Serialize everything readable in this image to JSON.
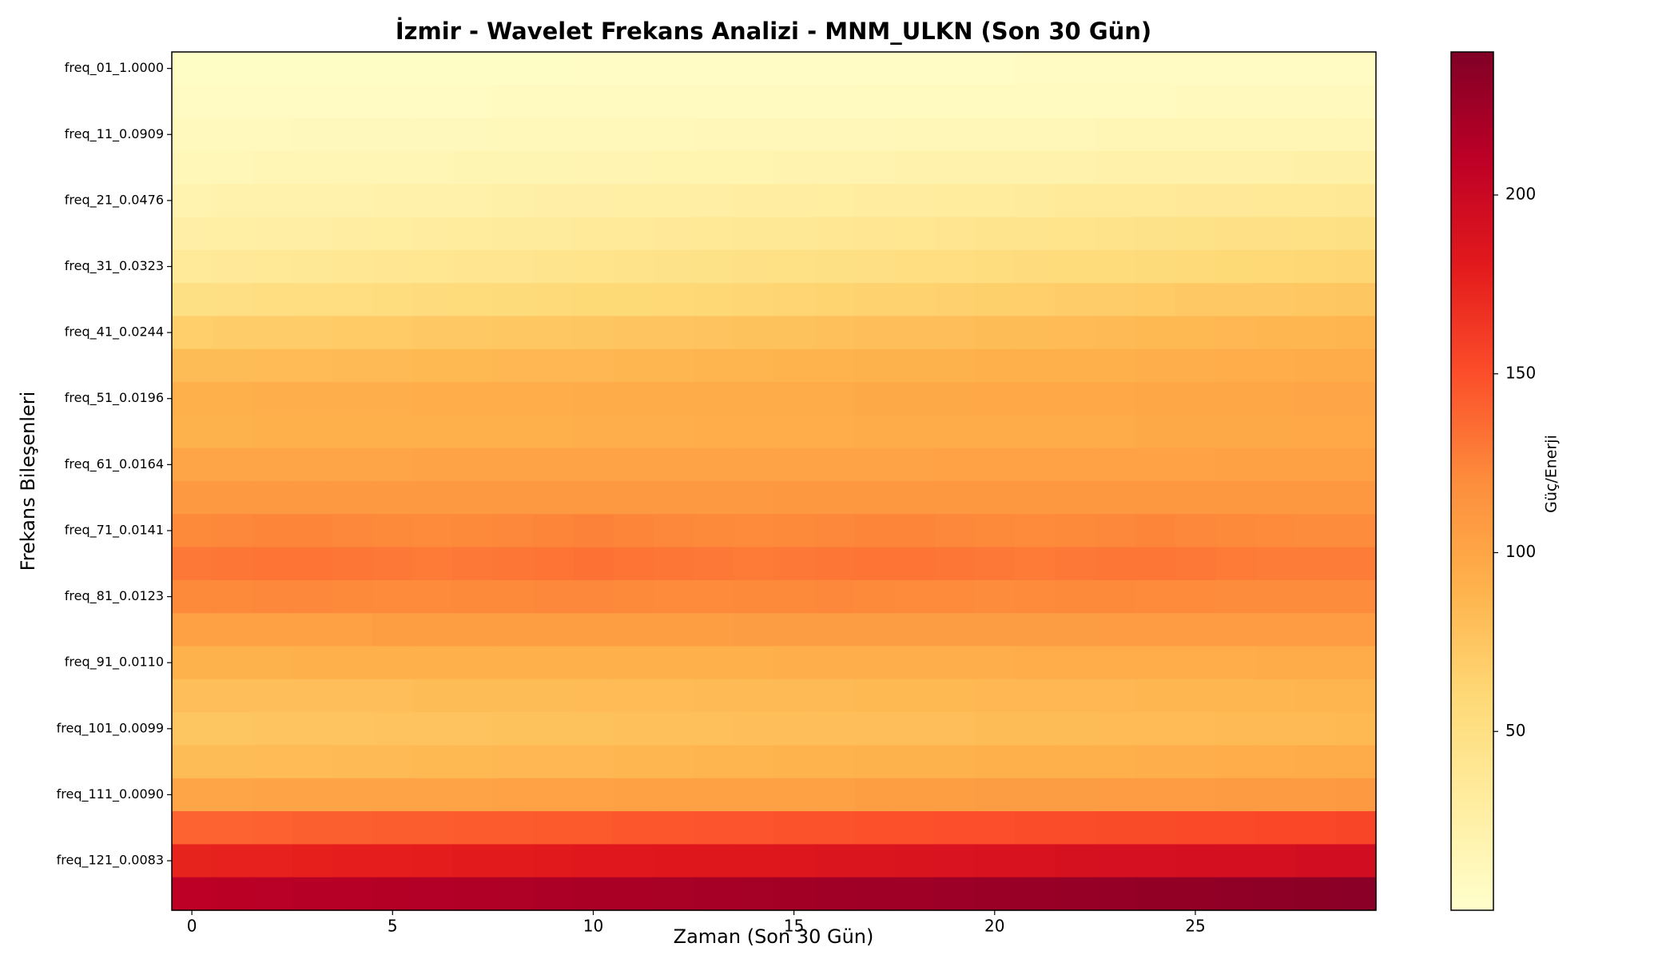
{
  "chart_data": {
    "type": "heatmap",
    "title": "İzmir - Wavelet Frekans Analizi - MNM_ULKN (Son 30 Gün)",
    "xlabel": "Zaman (Son 30 Gün)",
    "ylabel": "Frekans Bileşenleri",
    "colorbar_label": "Güç/Enerji",
    "colormap": "YlOrRd",
    "x": [
      0,
      1,
      2,
      3,
      4,
      5,
      6,
      7,
      8,
      9,
      10,
      11,
      12,
      13,
      14,
      15,
      16,
      17,
      18,
      19,
      20,
      21,
      22,
      23,
      24,
      25,
      26,
      27,
      28,
      29
    ],
    "xlim": [
      -0.5,
      29.5
    ],
    "xticks": [
      0,
      5,
      10,
      15,
      20,
      25
    ],
    "categories": [
      "freq_01_1.0000",
      null,
      "freq_11_0.0909",
      null,
      "freq_21_0.0476",
      null,
      "freq_31_0.0323",
      null,
      "freq_41_0.0244",
      null,
      "freq_51_0.0196",
      null,
      "freq_61_0.0164",
      null,
      "freq_71_0.0141",
      null,
      "freq_81_0.0123",
      null,
      "freq_91_0.0110",
      null,
      "freq_101_0.0099",
      null,
      "freq_111_0.0090",
      null,
      "freq_121_0.0083",
      null
    ],
    "clim": [
      0,
      240
    ],
    "cticks": [
      50,
      100,
      150,
      200
    ],
    "z": [
      [
        4,
        4,
        4,
        4,
        4,
        4,
        4,
        4,
        4,
        4,
        5,
        5,
        5,
        5,
        5,
        5,
        5,
        5,
        5,
        5,
        5,
        6,
        6,
        6,
        6,
        6,
        6,
        6,
        6,
        6
      ],
      [
        7,
        7,
        7,
        7,
        7,
        7,
        7,
        7,
        8,
        8,
        8,
        8,
        8,
        8,
        8,
        8,
        8,
        9,
        9,
        9,
        9,
        9,
        9,
        9,
        9,
        10,
        10,
        10,
        10,
        10
      ],
      [
        10,
        10,
        10,
        11,
        11,
        11,
        11,
        11,
        12,
        12,
        12,
        12,
        12,
        13,
        13,
        13,
        13,
        13,
        14,
        14,
        14,
        14,
        14,
        15,
        15,
        15,
        15,
        15,
        16,
        16
      ],
      [
        14,
        14,
        15,
        15,
        16,
        16,
        16,
        17,
        17,
        17,
        18,
        18,
        19,
        19,
        19,
        20,
        20,
        20,
        21,
        21,
        22,
        22,
        22,
        23,
        23,
        23,
        24,
        24,
        25,
        25
      ],
      [
        20,
        21,
        21,
        22,
        22,
        23,
        24,
        24,
        25,
        26,
        26,
        27,
        27,
        28,
        29,
        29,
        30,
        31,
        31,
        32,
        32,
        33,
        34,
        34,
        35,
        36,
        36,
        37,
        37,
        38
      ],
      [
        26,
        27,
        28,
        28,
        29,
        30,
        31,
        32,
        33,
        33,
        34,
        35,
        36,
        37,
        38,
        38,
        39,
        40,
        41,
        42,
        43,
        43,
        44,
        45,
        46,
        47,
        48,
        48,
        49,
        50
      ],
      [
        35,
        36,
        37,
        38,
        39,
        40,
        41,
        42,
        42,
        43,
        44,
        45,
        46,
        47,
        48,
        49,
        50,
        51,
        52,
        53,
        54,
        55,
        56,
        56,
        57,
        58,
        59,
        60,
        61,
        62
      ],
      [
        50,
        51,
        52,
        53,
        53,
        54,
        55,
        56,
        57,
        58,
        59,
        59,
        60,
        61,
        62,
        63,
        64,
        65,
        65,
        66,
        67,
        68,
        69,
        70,
        71,
        72,
        72,
        73,
        74,
        75
      ],
      [
        68,
        69,
        69,
        70,
        71,
        71,
        72,
        73,
        74,
        74,
        75,
        76,
        76,
        77,
        78,
        78,
        79,
        80,
        80,
        81,
        82,
        82,
        83,
        84,
        85,
        85,
        86,
        87,
        87,
        88
      ],
      [
        82,
        82,
        83,
        83,
        84,
        84,
        85,
        85,
        86,
        86,
        86,
        87,
        87,
        88,
        88,
        89,
        89,
        90,
        90,
        90,
        91,
        91,
        92,
        92,
        93,
        93,
        94,
        94,
        95,
        95
      ],
      [
        92,
        92,
        93,
        93,
        93,
        93,
        94,
        94,
        94,
        94,
        95,
        95,
        95,
        96,
        96,
        96,
        96,
        97,
        97,
        97,
        98,
        98,
        98,
        98,
        99,
        99,
        99,
        99,
        100,
        100
      ],
      [
        90,
        90,
        91,
        91,
        91,
        91,
        92,
        92,
        92,
        92,
        93,
        93,
        93,
        94,
        94,
        94,
        94,
        95,
        95,
        95,
        96,
        96,
        96,
        96,
        97,
        97,
        97,
        97,
        98,
        98
      ],
      [
        100,
        100,
        100,
        100,
        100,
        100,
        101,
        101,
        101,
        101,
        101,
        101,
        101,
        102,
        102,
        102,
        102,
        102,
        102,
        103,
        103,
        103,
        103,
        103,
        103,
        103,
        104,
        104,
        104,
        104
      ],
      [
        110,
        110,
        110,
        110,
        110,
        110,
        110,
        110,
        110,
        110,
        110,
        110,
        110,
        110,
        110,
        111,
        111,
        111,
        111,
        111,
        111,
        111,
        111,
        112,
        112,
        112,
        112,
        112,
        112,
        112
      ],
      [
        122,
        123,
        124,
        124,
        123,
        122,
        121,
        122,
        123,
        124,
        125,
        124,
        123,
        122,
        121,
        122,
        123,
        124,
        124,
        123,
        122,
        121,
        122,
        123,
        124,
        123,
        122,
        121,
        120,
        120
      ],
      [
        130,
        131,
        132,
        132,
        131,
        130,
        129,
        130,
        131,
        132,
        133,
        132,
        131,
        130,
        129,
        130,
        131,
        132,
        132,
        131,
        130,
        129,
        130,
        131,
        131,
        130,
        129,
        128,
        128,
        128
      ],
      [
        122,
        122,
        123,
        123,
        122,
        121,
        121,
        122,
        122,
        123,
        123,
        122,
        121,
        121,
        122,
        122,
        123,
        122,
        121,
        121,
        120,
        121,
        122,
        122,
        121,
        121,
        120,
        120,
        120,
        120
      ],
      [
        105,
        105,
        105,
        105,
        105,
        106,
        106,
        106,
        106,
        106,
        106,
        106,
        106,
        106,
        107,
        107,
        107,
        107,
        107,
        107,
        107,
        107,
        107,
        108,
        108,
        108,
        108,
        108,
        108,
        108
      ],
      [
        90,
        90,
        90,
        91,
        91,
        91,
        91,
        91,
        91,
        92,
        92,
        92,
        92,
        92,
        92,
        93,
        93,
        93,
        93,
        93,
        93,
        94,
        94,
        94,
        94,
        94,
        94,
        95,
        95,
        95
      ],
      [
        80,
        80,
        81,
        81,
        81,
        81,
        82,
        82,
        82,
        82,
        83,
        83,
        83,
        84,
        84,
        84,
        84,
        85,
        85,
        85,
        86,
        86,
        86,
        86,
        87,
        87,
        87,
        87,
        88,
        88
      ],
      [
        75,
        75,
        76,
        76,
        76,
        77,
        77,
        77,
        78,
        78,
        78,
        79,
        79,
        79,
        80,
        80,
        80,
        81,
        81,
        81,
        82,
        82,
        82,
        83,
        83,
        83,
        84,
        84,
        84,
        85
      ],
      [
        82,
        82,
        83,
        83,
        84,
        84,
        85,
        85,
        86,
        86,
        86,
        87,
        87,
        88,
        88,
        89,
        89,
        90,
        90,
        90,
        91,
        91,
        92,
        92,
        93,
        93,
        94,
        94,
        95,
        95
      ],
      [
        100,
        100,
        101,
        101,
        101,
        102,
        102,
        102,
        103,
        103,
        103,
        104,
        104,
        104,
        105,
        105,
        105,
        106,
        106,
        106,
        107,
        107,
        107,
        108,
        108,
        108,
        109,
        109,
        109,
        110
      ],
      [
        140,
        140,
        141,
        142,
        142,
        143,
        143,
        144,
        144,
        145,
        145,
        146,
        146,
        147,
        147,
        148,
        148,
        149,
        149,
        150,
        150,
        151,
        151,
        152,
        152,
        153,
        153,
        154,
        154,
        155
      ],
      [
        175,
        176,
        176,
        177,
        178,
        178,
        179,
        180,
        180,
        181,
        182,
        182,
        183,
        184,
        184,
        185,
        186,
        186,
        187,
        188,
        189,
        189,
        190,
        191,
        191,
        192,
        193,
        193,
        194,
        195
      ],
      [
        210,
        211,
        212,
        213,
        213,
        214,
        215,
        216,
        217,
        218,
        219,
        219,
        220,
        221,
        222,
        223,
        224,
        225,
        225,
        226,
        227,
        228,
        229,
        230,
        231,
        231,
        232,
        233,
        234,
        235
      ]
    ]
  }
}
